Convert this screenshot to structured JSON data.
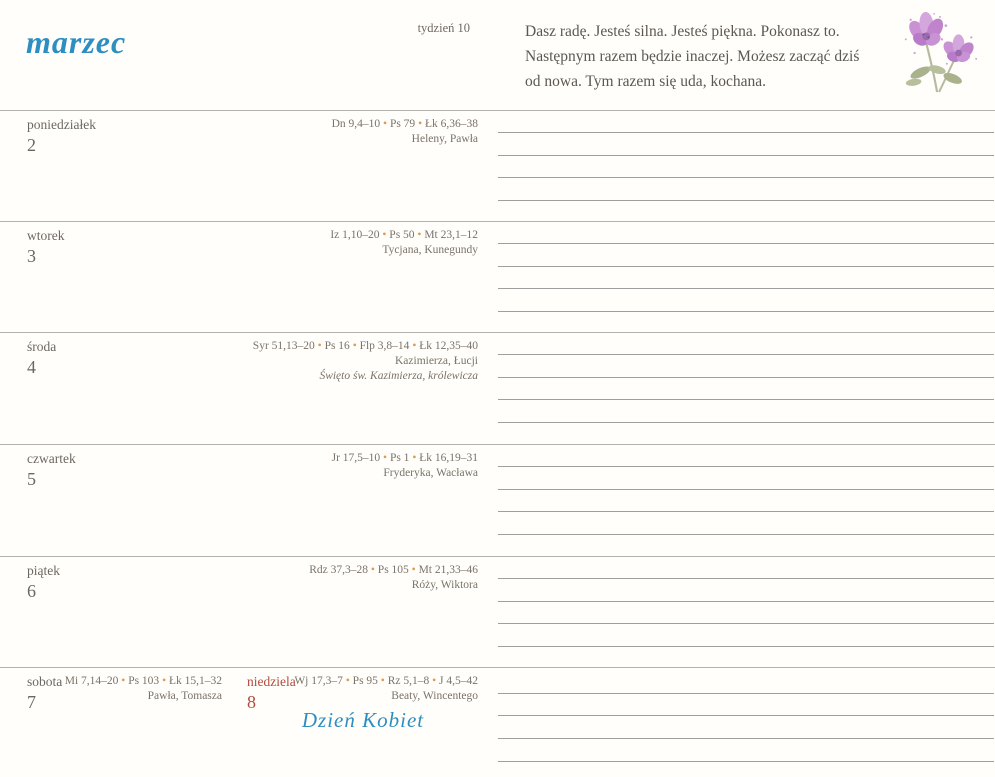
{
  "header": {
    "month": "marzec",
    "week": "tydzień 10",
    "quote": "Dasz radę. Jesteś silna. Jesteś piękna. Pokonasz to.\nNastępnym razem będzie inaczej. Możesz zacząć dziś\nod nowa. Tym razem się uda, kochana."
  },
  "colors": {
    "accent_blue": "#2d8fc1",
    "sunday_red": "#b34a3a",
    "dot_orange": "#dd9a4e",
    "flower_purple": "#c992d4",
    "leaf_green": "#a9b28c"
  },
  "days": [
    {
      "name": "poniedziałek",
      "number": "2",
      "readings": "Dn 9,4–10 • Ps 79 • Łk 6,36–38",
      "names": "Heleny, Pawła",
      "feast": ""
    },
    {
      "name": "wtorek",
      "number": "3",
      "readings": "Iz 1,10–20 • Ps 50 • Mt 23,1–12",
      "names": "Tycjana, Kunegundy",
      "feast": ""
    },
    {
      "name": "środa",
      "number": "4",
      "readings": "Syr 51,13–20 • Ps 16 • Flp 3,8–14 • Łk 12,35–40",
      "names": "Kazimierza, Łucji",
      "feast": "Święto św. Kazimierza, królewicza"
    },
    {
      "name": "czwartek",
      "number": "5",
      "readings": "Jr 17,5–10 • Ps 1 • Łk 16,19–31",
      "names": "Fryderyka, Wacława",
      "feast": ""
    },
    {
      "name": "piątek",
      "number": "6",
      "readings": "Rdz 37,3–28 • Ps 105 • Mt 21,33–46",
      "names": "Róży, Wiktora",
      "feast": ""
    },
    {
      "name": "sobota",
      "number": "7",
      "readings": "Mi 7,14–20 • Ps 103 • Łk 15,1–32",
      "names": "Pawła, Tomasza",
      "feast": ""
    },
    {
      "name": "niedziela",
      "number": "8",
      "readings": "Wj 17,3–7 • Ps 95 • Rz 5,1–8 • J 4,5–42",
      "names": "Beaty, Wincentego",
      "feast": "",
      "holiday": "Dzień Kobiet"
    }
  ]
}
